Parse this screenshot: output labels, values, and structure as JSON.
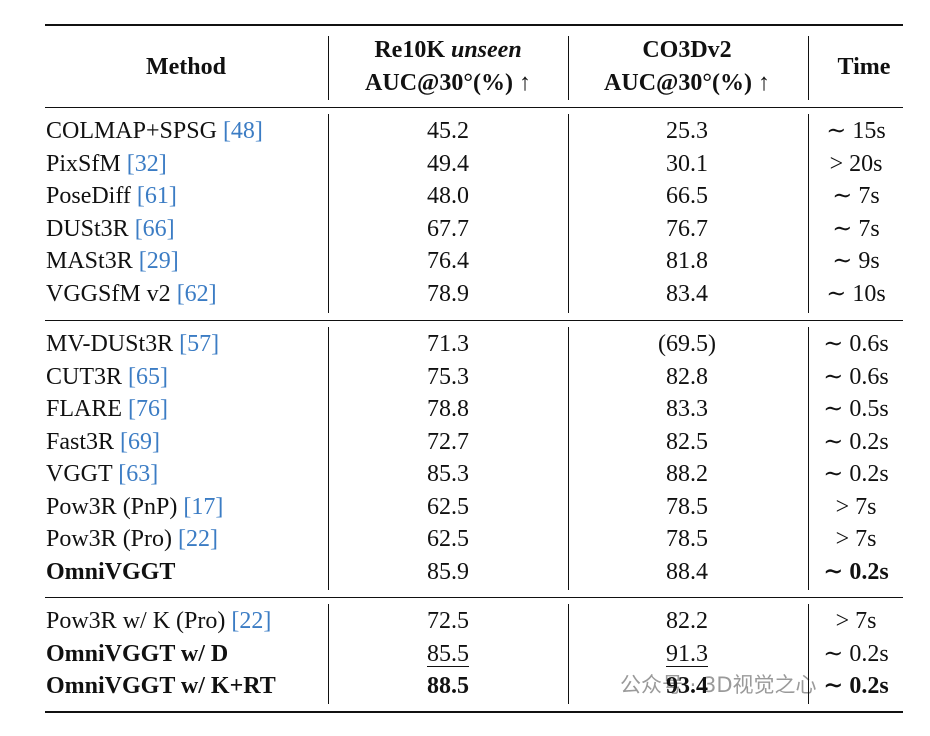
{
  "header": {
    "method": "Method",
    "re10k": {
      "name": "Re10K",
      "qualifier": "unseen",
      "metric": "AUC@30°(%) ↑"
    },
    "co3d": {
      "name": "CO3Dv2",
      "metric": "AUC@30°(%) ↑"
    },
    "time": "Time"
  },
  "groups": [
    [
      {
        "method": "COLMAP+SPSG",
        "ref": "[48]",
        "re10k": "45.2",
        "co3d": "25.3",
        "time": "∼ 15s"
      },
      {
        "method": "PixSfM",
        "ref": "[32]",
        "re10k": "49.4",
        "co3d": "30.1",
        "time": "> 20s"
      },
      {
        "method": "PoseDiff",
        "ref": "[61]",
        "re10k": "48.0",
        "co3d": "66.5",
        "time": "∼ 7s"
      },
      {
        "method": "DUSt3R",
        "ref": "[66]",
        "re10k": "67.7",
        "co3d": "76.7",
        "time": "∼ 7s"
      },
      {
        "method": "MASt3R",
        "ref": "[29]",
        "re10k": "76.4",
        "co3d": "81.8",
        "time": "∼ 9s"
      },
      {
        "method": "VGGSfM v2",
        "ref": "[62]",
        "re10k": "78.9",
        "co3d": "83.4",
        "time": "∼ 10s"
      }
    ],
    [
      {
        "method": "MV-DUSt3R",
        "ref": "[57]",
        "re10k": "71.3",
        "co3d": "(69.5)",
        "time": "∼ 0.6s"
      },
      {
        "method": "CUT3R",
        "ref": "[65]",
        "re10k": "75.3",
        "co3d": "82.8",
        "time": "∼ 0.6s"
      },
      {
        "method": "FLARE",
        "ref": "[76]",
        "re10k": "78.8",
        "co3d": "83.3",
        "time": "∼ 0.5s"
      },
      {
        "method": "Fast3R",
        "ref": "[69]",
        "re10k": "72.7",
        "co3d": "82.5",
        "time": "∼ 0.2s"
      },
      {
        "method": "VGGT",
        "ref": "[63]",
        "re10k": "85.3",
        "co3d": "88.2",
        "time": "∼ 0.2s"
      },
      {
        "method": "Pow3R (PnP)",
        "ref": "[17]",
        "re10k": "62.5",
        "co3d": "78.5",
        "time": "> 7s"
      },
      {
        "method": "Pow3R (Pro)",
        "ref": "[22]",
        "re10k": "62.5",
        "co3d": "78.5",
        "time": "> 7s"
      },
      {
        "method": "OmniVGGT",
        "re10k": "85.9",
        "co3d": "88.4",
        "time": "∼ 0.2s",
        "bold_method": true,
        "bold_time": true
      }
    ],
    [
      {
        "method": "Pow3R w/ K (Pro)",
        "ref": "[22]",
        "re10k": "72.5",
        "co3d": "82.2",
        "time": "> 7s"
      },
      {
        "method": "OmniVGGT w/ D",
        "re10k": "85.5",
        "co3d": "91.3",
        "time": "∼ 0.2s",
        "bold_method": true,
        "underline_values": true
      },
      {
        "method": "OmniVGGT w/ K+RT",
        "re10k": "88.5",
        "co3d": "93.4",
        "time": "∼ 0.2s",
        "bold_method": true,
        "bold_values": true,
        "bold_time": true
      }
    ]
  ],
  "watermark": "公众号 · 3D视觉之心"
}
